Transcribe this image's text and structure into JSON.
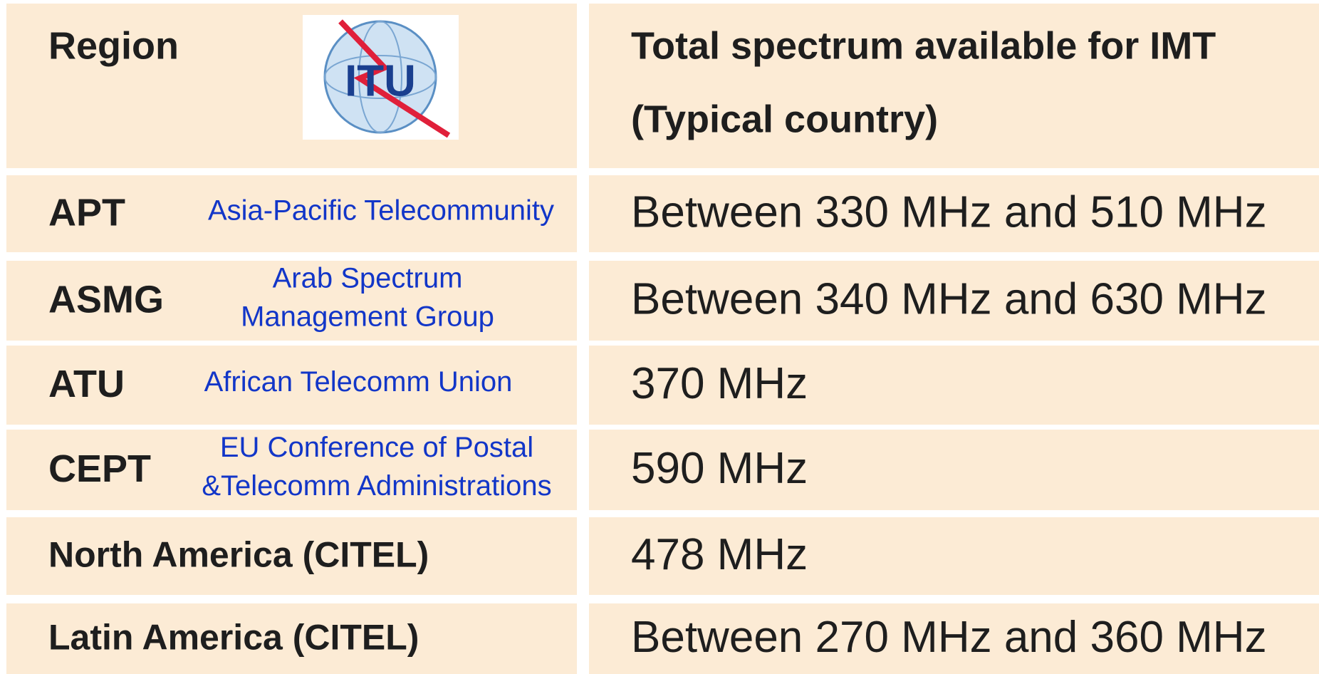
{
  "header": {
    "region": "Region",
    "logo_text": "ITU",
    "spectrum": [
      "Total spectrum available for IMT",
      "(Typical country)"
    ]
  },
  "rows": [
    {
      "region": "APT",
      "full_name": [
        "Asia-Pacific Telecommunity"
      ],
      "spectrum": "Between 330 MHz and 510 MHz"
    },
    {
      "region": "ASMG",
      "full_name": [
        "Arab Spectrum",
        "Management Group"
      ],
      "spectrum": "Between 340 MHz and 630 MHz"
    },
    {
      "region": "ATU",
      "full_name": [
        "African Telecomm Union"
      ],
      "spectrum": "370 MHz"
    },
    {
      "region": "CEPT",
      "full_name": [
        "EU Conference of Postal",
        "&Telecomm Administrations"
      ],
      "spectrum": "590 MHz"
    },
    {
      "region": "North America (CITEL)",
      "spectrum": "478 MHz"
    },
    {
      "region": "Latin America (CITEL)",
      "spectrum": "Between 270 MHz and 360 MHz"
    }
  ]
}
